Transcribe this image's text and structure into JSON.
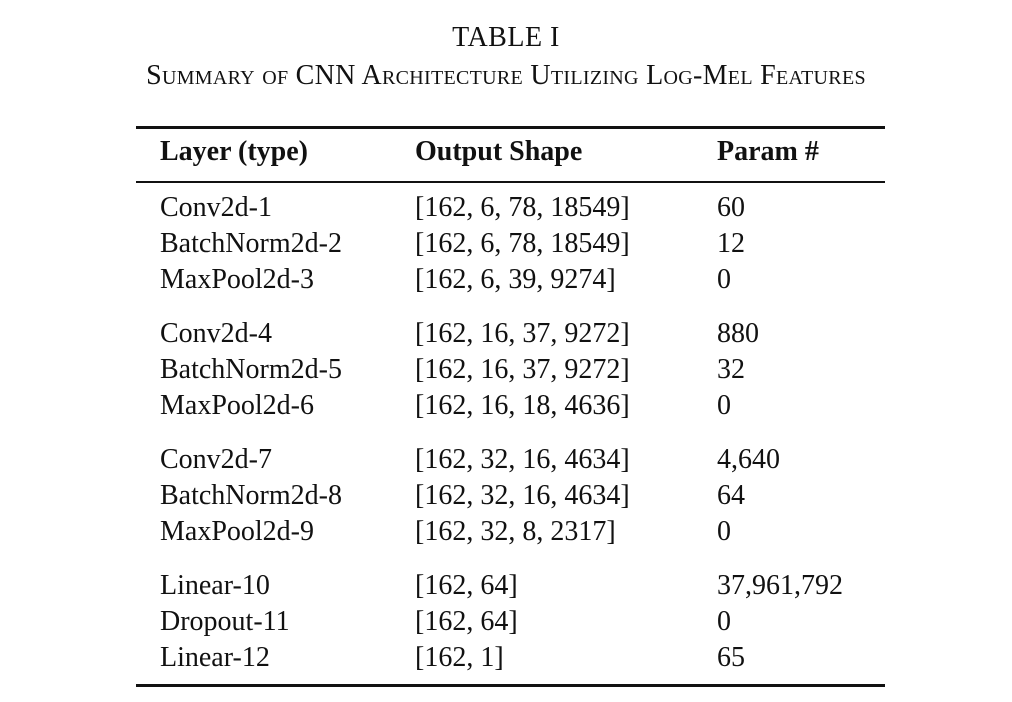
{
  "caption": {
    "label": "TABLE I",
    "title": "Summary of CNN Architecture Utilizing Log-Mel Features"
  },
  "table": {
    "columns": [
      "Layer (type)",
      "Output Shape",
      "Param #"
    ],
    "groups": [
      [
        {
          "layer": "Conv2d-1",
          "shape": "[162, 6, 78, 18549]",
          "params": "60"
        },
        {
          "layer": "BatchNorm2d-2",
          "shape": "[162, 6, 78, 18549]",
          "params": "12"
        },
        {
          "layer": "MaxPool2d-3",
          "shape": "[162, 6, 39, 9274]",
          "params": "0"
        }
      ],
      [
        {
          "layer": "Conv2d-4",
          "shape": "[162, 16, 37, 9272]",
          "params": "880"
        },
        {
          "layer": "BatchNorm2d-5",
          "shape": "[162, 16, 37, 9272]",
          "params": "32"
        },
        {
          "layer": "MaxPool2d-6",
          "shape": "[162, 16, 18, 4636]",
          "params": "0"
        }
      ],
      [
        {
          "layer": "Conv2d-7",
          "shape": "[162, 32, 16, 4634]",
          "params": "4,640"
        },
        {
          "layer": "BatchNorm2d-8",
          "shape": "[162, 32, 16, 4634]",
          "params": "64"
        },
        {
          "layer": "MaxPool2d-9",
          "shape": "[162, 32, 8, 2317]",
          "params": "0"
        }
      ],
      [
        {
          "layer": "Linear-10",
          "shape": "[162, 64]",
          "params": "37,961,792"
        },
        {
          "layer": "Dropout-11",
          "shape": "[162, 64]",
          "params": "0"
        },
        {
          "layer": "Linear-12",
          "shape": "[162, 1]",
          "params": "65"
        }
      ]
    ]
  }
}
